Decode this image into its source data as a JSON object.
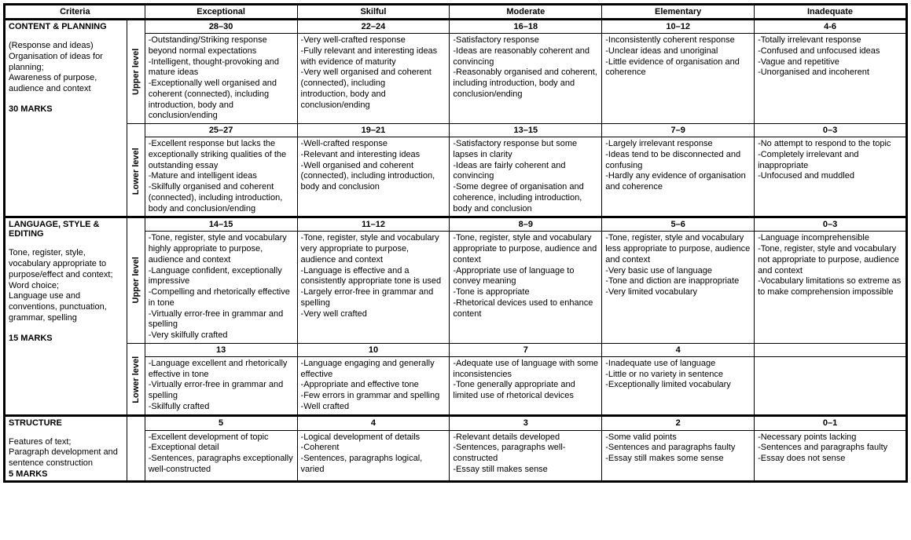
{
  "headers": {
    "criteria": "Criteria",
    "levels": [
      "Exceptional",
      "Skilful",
      "Moderate",
      "Elementary",
      "Inadequate"
    ]
  },
  "rot": {
    "upper": "Upper level",
    "lower": "Lower level"
  },
  "sections": [
    {
      "title": "CONTENT & PLANNING",
      "sub": "(Response and ideas)\nOrganisation of ideas for planning;\nAwareness of purpose, audience and context",
      "marks": "30 MARKS",
      "upper": {
        "scores": [
          "28–30",
          "22–24",
          "16–18",
          "10–12",
          "4-6"
        ],
        "cells": [
          "-Outstanding/Striking response beyond normal expectations\n-Intelligent, thought-provoking and mature ideas\n-Exceptionally well organised and coherent  (connected), including introduction, body and conclusion/ending",
          "-Very well-crafted response\n-Fully relevant and interesting ideas with evidence of maturity\n-Very well organised and coherent (connected), including\nintroduction, body and conclusion/ending",
          "-Satisfactory response\n-Ideas are reasonably coherent and convincing\n-Reasonably organised and coherent, including introduction, body and conclusion/ending",
          "-Inconsistently coherent response\n-Unclear ideas and unoriginal\n-Little evidence of organisation and coherence",
          "-Totally irrelevant response\n-Confused and unfocused ideas\n-Vague and repetitive\n-Unorganised and incoherent"
        ]
      },
      "lower": {
        "scores": [
          "25–27",
          "19–21",
          "13–15",
          "7–9",
          "0–3"
        ],
        "cells": [
          "-Excellent response but lacks the exceptionally striking qualities of the outstanding essay\n-Mature and intelligent ideas\n-Skilfully organised and coherent (connected), including introduction, body and conclusion/ending",
          "-Well-crafted response\n-Relevant and interesting ideas\n-Well organised and coherent (connected), including introduction, body and conclusion",
          "-Satisfactory response but some lapses in clarity\n-Ideas are fairly coherent and convincing\n-Some degree of organisation and coherence, including introduction, body and conclusion",
          "-Largely irrelevant response\n-Ideas tend to be disconnected and confusing\n-Hardly any evidence of organisation and coherence",
          "-No attempt to respond to the topic\n-Completely irrelevant and inappropriate\n-Unfocused and muddled"
        ]
      }
    },
    {
      "title": "LANGUAGE, STYLE & EDITING",
      "sub": "Tone, register, style, vocabulary appropriate to purpose/effect and context;\nWord choice;\nLanguage use and conventions, punctuation, grammar, spelling",
      "marks": "15 MARKS",
      "upper": {
        "scores": [
          "14–15",
          "11–12",
          "8–9",
          "5–6",
          "0–3"
        ],
        "cells": [
          "-Tone, register, style and vocabulary highly appropriate to purpose, audience and context\n-Language confident, exceptionally impressive\n-Compelling and rhetorically effective in tone\n-Virtually error-free in grammar and spelling\n-Very skilfully crafted",
          "-Tone, register, style and vocabulary very appropriate to purpose, audience and context\n-Language is effective and a consistently appropriate tone is used\n-Largely error-free in grammar and spelling\n-Very well crafted",
          "-Tone, register, style and vocabulary appropriate to purpose, audience and context\n-Appropriate use of language to convey meaning\n-Tone is appropriate\n-Rhetorical devices used to enhance content",
          "-Tone, register, style and vocabulary less appropriate to purpose, audience and context\n-Very basic use of language\n-Tone and diction are inappropriate\n-Very limited vocabulary",
          "-Language incomprehensible\n-Tone, register, style and vocabulary not appropriate to purpose, audience and context\n-Vocabulary limitations so extreme as to make comprehension impossible"
        ]
      },
      "lower": {
        "scores": [
          "13",
          "10",
          "7",
          "4",
          ""
        ],
        "cells": [
          "-Language excellent and rhetorically effective in tone\n-Virtually error-free in grammar and spelling\n-Skilfully crafted",
          "-Language engaging and generally effective\n-Appropriate and effective tone\n-Few errors in grammar and spelling\n-Well crafted",
          "-Adequate use of language with some inconsistencies\n-Tone generally appropriate and limited use of rhetorical devices",
          "-Inadequate use of language\n-Little or no variety in sentence\n-Exceptionally limited vocabulary",
          ""
        ]
      }
    },
    {
      "title": "STRUCTURE",
      "sub": "Features of text;\nParagraph development and sentence construction",
      "marks": "5 MARKS",
      "single": {
        "scores": [
          "5",
          "4",
          "3",
          "2",
          "0–1"
        ],
        "cells": [
          "-Excellent development of topic\n-Exceptional detail\n-Sentences, paragraphs exceptionally well-constructed",
          "-Logical development of details\n-Coherent\n-Sentences, paragraphs logical, varied",
          "-Relevant details developed\n-Sentences, paragraphs well-constructed\n-Essay still makes sense",
          "-Some valid points\n-Sentences and paragraphs faulty\n-Essay still makes some sense",
          "-Necessary points lacking\n-Sentences and  paragraphs faulty\n-Essay does not sense"
        ]
      }
    }
  ]
}
